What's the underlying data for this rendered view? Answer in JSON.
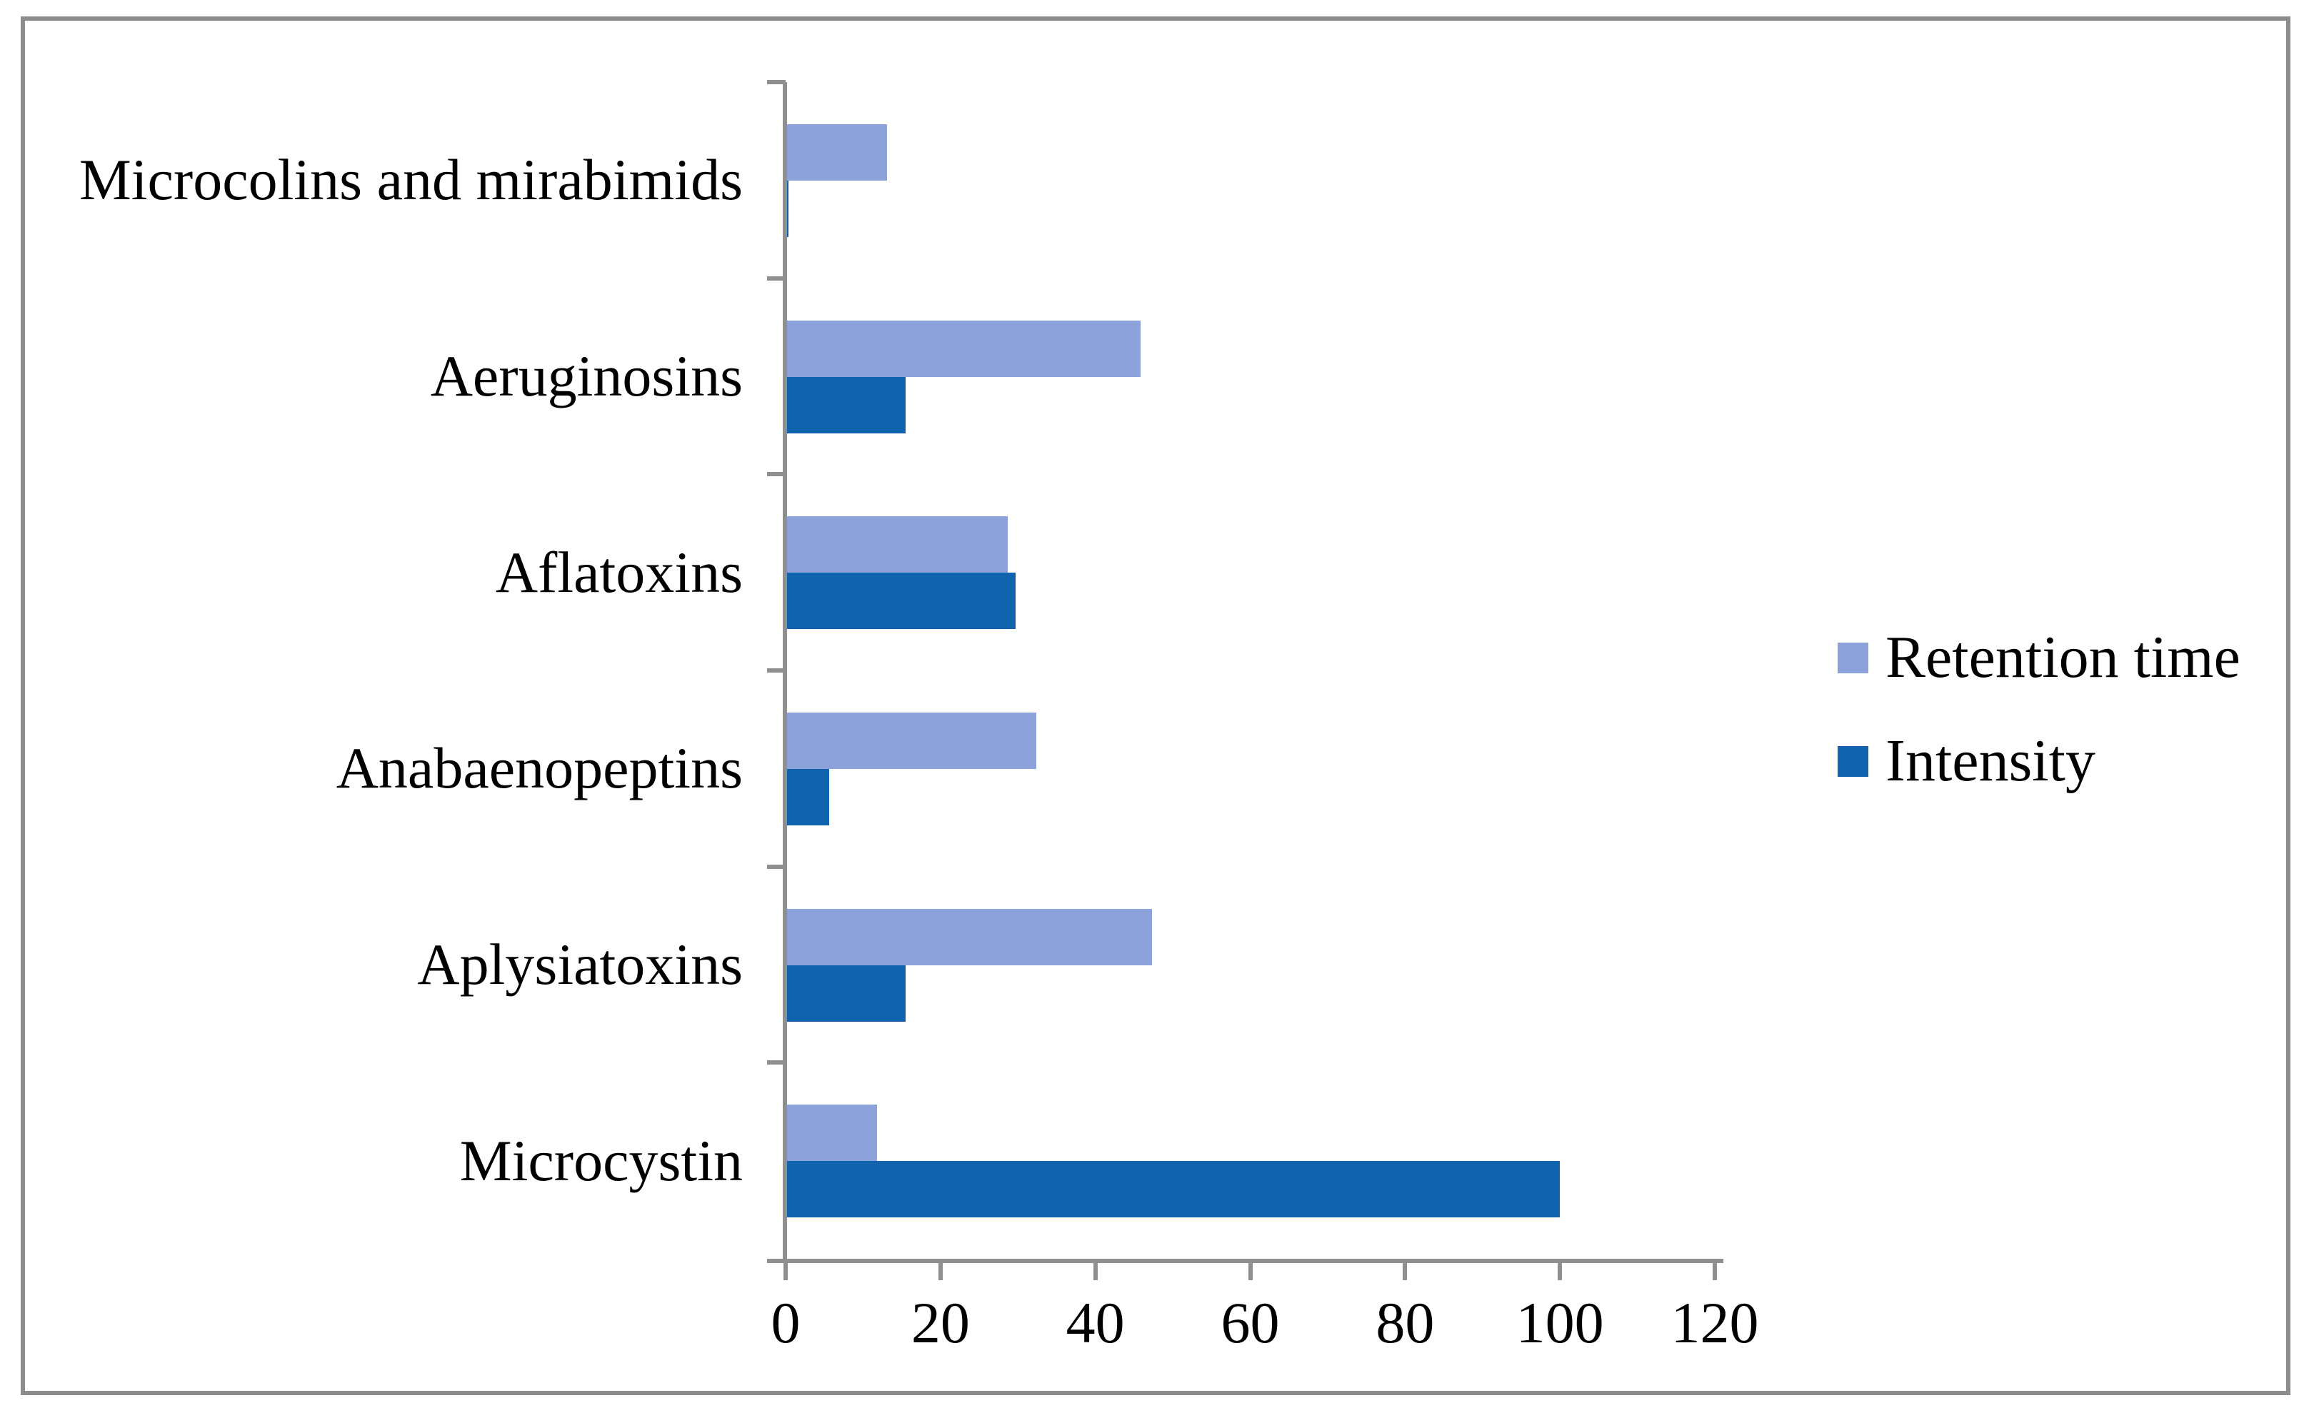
{
  "chart_data": {
    "type": "bar",
    "orientation": "horizontal",
    "title": "",
    "xlabel": "",
    "ylabel": "",
    "categories": [
      "Microcolins and mirabimids",
      "Aeruginosins",
      "Aflatoxins",
      "Anabaenopeptins",
      "Aplysiatoxins",
      "Microcystin"
    ],
    "series": [
      {
        "name": "Retention time",
        "color": "#8CA2D8",
        "values": [
          13.1,
          45.8,
          28.7,
          32.4,
          47.3,
          11.8
        ]
      },
      {
        "name": "Intensity",
        "color": "#1263AE",
        "values": [
          0.4,
          15.5,
          29.7,
          5.6,
          15.5,
          100
        ]
      }
    ],
    "xlim": [
      0,
      120
    ],
    "x_ticks": [
      0,
      20,
      40,
      60,
      80,
      100,
      120
    ],
    "x_tick_labels": [
      "0",
      "20",
      "40",
      "60",
      "80",
      "100",
      "120"
    ],
    "grid": false,
    "legend_position": "right",
    "axis_color": "#8F8F8F",
    "border_color": "#8C8C8C"
  }
}
